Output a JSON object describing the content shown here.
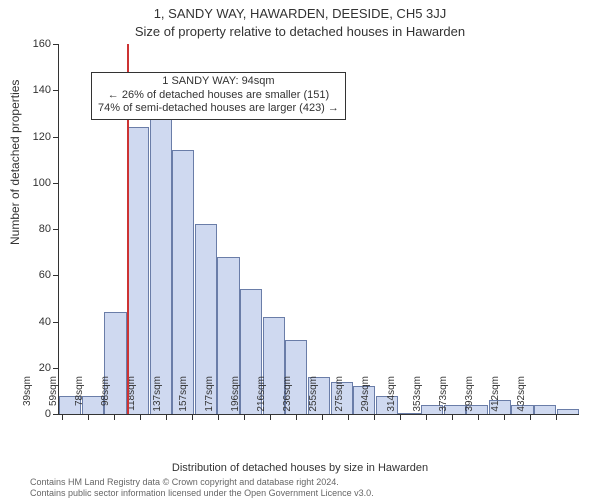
{
  "header": {
    "address": "1, SANDY WAY, HAWARDEN, DEESIDE, CH5 3JJ",
    "subtitle": "Size of property relative to detached houses in Hawarden"
  },
  "y_axis": {
    "label": "Number of detached properties",
    "min": 0,
    "max": 160,
    "step": 20,
    "ticks": [
      0,
      20,
      40,
      60,
      80,
      100,
      120,
      140,
      160
    ]
  },
  "x_axis": {
    "label": "Distribution of detached houses by size in Hawarden",
    "tick_labels": [
      "39sqm",
      "59sqm",
      "78sqm",
      "98sqm",
      "118sqm",
      "137sqm",
      "157sqm",
      "177sqm",
      "196sqm",
      "216sqm",
      "236sqm",
      "255sqm",
      "275sqm",
      "294sqm",
      "314sqm",
      "353sqm",
      "373sqm",
      "393sqm",
      "412sqm",
      "432sqm"
    ]
  },
  "bars": {
    "values": [
      8,
      8,
      44,
      124,
      130,
      114,
      82,
      68,
      54,
      42,
      32,
      16,
      14,
      12,
      8,
      0,
      4,
      4,
      4,
      6,
      4,
      4,
      2
    ],
    "fill": "#cfd9f0",
    "stroke": "#6a7da8",
    "stroke_width": 1
  },
  "marker": {
    "bin_index_after": 3,
    "frac_within_slot": 0.0,
    "line_color": "#cc3333",
    "line_width": 2
  },
  "annotation": {
    "line1": "1 SANDY WAY: 94sqm",
    "line2": "← 26% of detached houses are smaller (151)",
    "line3": "74% of semi-detached houses are larger (423) →",
    "top_at_value": 148
  },
  "footer": {
    "line1": "Contains HM Land Registry data © Crown copyright and database right 2024.",
    "line2": "Contains public sector information licensed under the Open Government Licence v3.0."
  },
  "style": {
    "plot_bg": "#ffffff",
    "axis_color": "#333333",
    "text_color": "#333333",
    "title_fontsize": 13,
    "label_fontsize": 12,
    "tick_fontsize": 11
  }
}
